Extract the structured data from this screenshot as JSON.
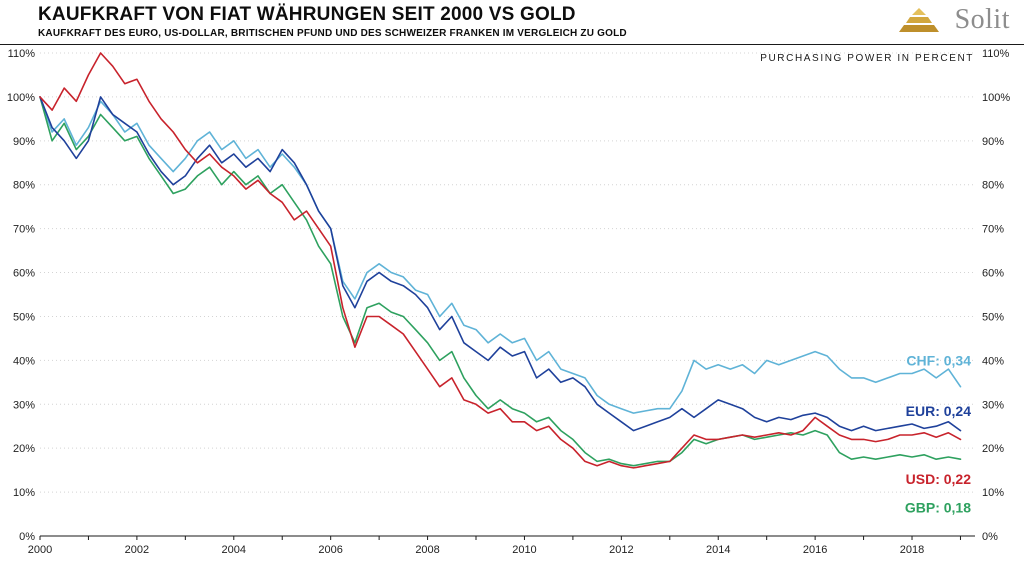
{
  "header": {
    "brand": "Solit"
  },
  "chart_data": {
    "type": "line",
    "title": "KAUFKRAFT VON FIAT WÄHRUNGEN SEIT 2000 VS GOLD",
    "subtitle": "KAUFKRAFT DES EURO, US-DOLLAR, BRITISCHEN PFUND UND DES SCHWEIZER FRANKEN IM VERGLEICH ZU GOLD",
    "note": "PURCHASING POWER IN PERCENT",
    "x_start": 2000,
    "x_step": 0.25,
    "xlim": [
      2000,
      2019.3
    ],
    "ylim": [
      0,
      110
    ],
    "y_tick_step": 10,
    "y_tick_suffix": "%",
    "x_tick_years": [
      2000,
      2001,
      2002,
      2003,
      2004,
      2005,
      2006,
      2007,
      2008,
      2009,
      2010,
      2011,
      2012,
      2013,
      2014,
      2015,
      2016,
      2017,
      2018,
      2019
    ],
    "x_tick_labels": [
      "2000",
      "2002",
      "2004",
      "2006",
      "2008",
      "2010",
      "2012",
      "2014",
      "2016",
      "2018"
    ],
    "grid": "horizontal-dotted",
    "legend_position": "end-of-line",
    "series": [
      {
        "name": "CHF",
        "color": "#5FB3D7",
        "final_label": "CHF: 0,34",
        "final_value": 0.34,
        "label_y_percent": 40,
        "values": [
          100,
          92,
          95,
          89,
          93,
          99,
          96,
          92,
          94,
          89,
          86,
          83,
          86,
          90,
          92,
          88,
          90,
          86,
          88,
          84,
          87,
          84,
          80,
          74,
          70,
          58,
          54,
          60,
          62,
          60,
          59,
          56,
          55,
          50,
          53,
          48,
          47,
          44,
          46,
          44,
          45,
          40,
          42,
          38,
          37,
          36,
          32,
          30,
          29,
          28,
          28.5,
          29,
          29,
          33,
          40,
          38,
          39,
          38,
          39,
          37,
          40,
          39,
          40,
          41,
          42,
          41,
          38,
          36,
          36,
          35,
          36,
          37,
          37,
          38,
          36,
          38,
          34
        ]
      },
      {
        "name": "EUR",
        "color": "#1F419B",
        "final_label": "EUR: 0,24",
        "final_value": 0.24,
        "label_y_percent": 28.5,
        "values": [
          100,
          93,
          90,
          86,
          90,
          100,
          96,
          94,
          92,
          87,
          83,
          80,
          82,
          86,
          89,
          85,
          87,
          84,
          86,
          83,
          88,
          85,
          80,
          74,
          70,
          57,
          52,
          58,
          60,
          58,
          57,
          55,
          52,
          47,
          50,
          44,
          42,
          40,
          43,
          41,
          42,
          36,
          38,
          35,
          36,
          34,
          30,
          28,
          26,
          24,
          25,
          26,
          27,
          29,
          27,
          29,
          31,
          30,
          29,
          27,
          26,
          27,
          26.5,
          27.5,
          28,
          27,
          25,
          24,
          25,
          24,
          24.5,
          25,
          25.5,
          24.5,
          25,
          26,
          24
        ]
      },
      {
        "name": "USD",
        "color": "#C8232C",
        "final_label": "USD: 0,22",
        "final_value": 0.22,
        "label_y_percent": 13,
        "values": [
          100,
          97,
          102,
          99,
          105,
          110,
          107,
          103,
          104,
          99,
          95,
          92,
          88,
          85,
          87,
          84,
          82,
          79,
          81,
          78,
          76,
          72,
          74,
          70,
          66,
          52,
          43,
          50,
          50,
          48,
          46,
          42,
          38,
          34,
          36,
          31,
          30,
          28,
          29,
          26,
          26,
          24,
          25,
          22,
          20,
          17,
          16,
          17,
          16,
          15.5,
          16,
          16.5,
          17,
          20,
          23,
          22,
          22,
          22.5,
          23,
          22.5,
          23,
          23.5,
          23,
          24,
          27,
          25,
          23,
          22,
          22,
          21.5,
          22,
          23,
          23,
          23.5,
          22.5,
          23.5,
          22
        ]
      },
      {
        "name": "GBP",
        "color": "#2EA15F",
        "final_label": "GBP: 0,18",
        "final_value": 0.18,
        "label_y_percent": 6.5,
        "values": [
          100,
          90,
          94,
          88,
          91,
          96,
          93,
          90,
          91,
          86,
          82,
          78,
          79,
          82,
          84,
          80,
          83,
          80,
          82,
          78,
          80,
          76,
          72,
          66,
          62,
          50,
          44,
          52,
          53,
          51,
          50,
          47,
          44,
          40,
          42,
          36,
          32,
          29,
          31,
          29,
          28,
          26,
          27,
          24,
          22,
          19,
          17,
          17.5,
          16.5,
          16,
          16.5,
          17,
          17,
          19,
          22,
          21,
          22,
          22.5,
          23,
          22,
          22.5,
          23,
          23.5,
          23,
          24,
          23,
          19,
          17.5,
          18,
          17.5,
          18,
          18.5,
          18,
          18.5,
          17.5,
          18,
          17.5
        ]
      }
    ]
  }
}
